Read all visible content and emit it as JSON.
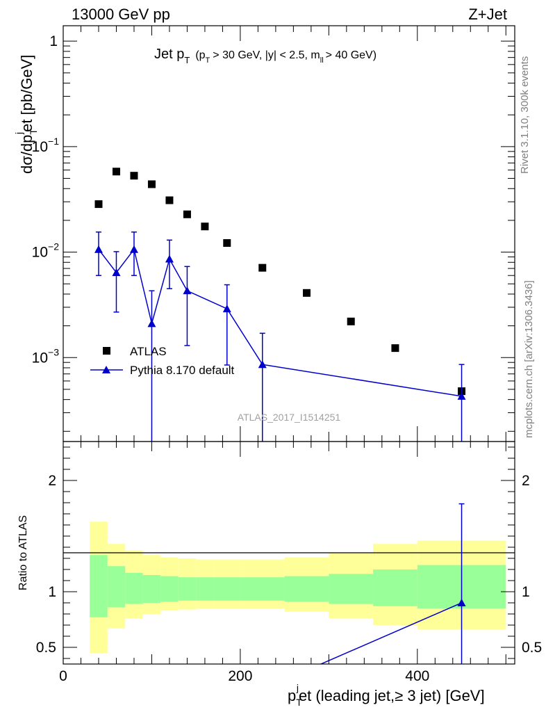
{
  "header": {
    "energy_label": "13000 GeV pp",
    "process_label": "Z+Jet",
    "side_label_top": "Rivet 3.1.10,  300k events",
    "side_label_bottom": "mcplots.cern.ch [arXiv:1306.3436]",
    "analysis_id": "ATLAS_2017_I1514251"
  },
  "chart_data": [
    {
      "type": "scatter",
      "title_main": "Jet p",
      "title_sub": "T",
      "title_cut_a": "(p",
      "title_cut_b": "T",
      "title_cut_c": "> 30 GeV, |y| < 2.5, m",
      "title_cut_d": "ll",
      "title_cut_e": "> 40 GeV)",
      "ylabel": "dσ/dp",
      "ylabel_sub_T": "T",
      "ylabel_sup_j": "j",
      "ylabel_tail": "et [pb/GeV]",
      "yscale": "log",
      "xlim": [
        0,
        510
      ],
      "ylim": [
        0.00016,
        1.4
      ],
      "yticks": [
        {
          "value": 1,
          "base": "1",
          "exp": ""
        },
        {
          "value": 0.1,
          "base": "10",
          "exp": "−1"
        },
        {
          "value": 0.01,
          "base": "10",
          "exp": "−2"
        },
        {
          "value": 0.001,
          "base": "10",
          "exp": "−3"
        }
      ],
      "legend": [
        {
          "label": "ATLAS",
          "marker": "square",
          "color": "#000000"
        },
        {
          "label": "Pythia 8.170 default",
          "marker": "triangle",
          "color": "#0000cc"
        }
      ],
      "series": [
        {
          "name": "ATLAS",
          "color": "#000000",
          "x": [
            40,
            60,
            80,
            100,
            120,
            140,
            160,
            185,
            225,
            275,
            325,
            375,
            450
          ],
          "y": [
            0.0285,
            0.058,
            0.053,
            0.044,
            0.031,
            0.0228,
            0.0175,
            0.0122,
            0.0071,
            0.0041,
            0.0022,
            0.00123,
            0.00048
          ]
        },
        {
          "name": "Pythia 8.170 default",
          "color": "#0000cc",
          "x": [
            40,
            60,
            80,
            100,
            120,
            140,
            185,
            225,
            450
          ],
          "y": [
            0.0106,
            0.0064,
            0.0106,
            0.0021,
            0.0086,
            0.0043,
            0.0029,
            0.00086,
            0.00043
          ],
          "y_low": [
            0.006,
            0.0027,
            0.006,
            0.0001,
            0.0045,
            0.0013,
            0.00085,
            0.0001,
            0.0001
          ],
          "y_high": [
            0.0155,
            0.0101,
            0.0155,
            0.0043,
            0.013,
            0.0073,
            0.0049,
            0.0017,
            0.00086
          ]
        }
      ]
    },
    {
      "type": "line",
      "ylabel": "Ratio to ATLAS",
      "xlabel_main": "p",
      "xlabel_sub": "T",
      "xlabel_sup": "j",
      "xlabel_tail": "et (leading jet,≥ 3 jet) [GeV]",
      "xlim": [
        0,
        510
      ],
      "ylim": [
        0.35,
        2.35
      ],
      "xticks": [
        {
          "value": 0,
          "label": "0"
        },
        {
          "value": 200,
          "label": "200"
        },
        {
          "value": 400,
          "label": "400"
        }
      ],
      "yticks": [
        {
          "value": 0.5,
          "label": "0.5"
        },
        {
          "value": 1,
          "label": "1"
        },
        {
          "value": 2,
          "label": "2"
        }
      ],
      "band_colors": {
        "outer": "#ffff99",
        "inner": "#99ff99"
      },
      "bins": [
        30,
        50,
        70,
        90,
        110,
        130,
        150,
        170,
        200,
        250,
        300,
        350,
        400,
        500
      ],
      "yellow_band": {
        "low": [
          0.45,
          0.67,
          0.76,
          0.8,
          0.83,
          0.84,
          0.85,
          0.85,
          0.85,
          0.82,
          0.76,
          0.7,
          0.66
        ],
        "high": [
          1.63,
          1.43,
          1.37,
          1.33,
          1.31,
          1.3,
          1.29,
          1.29,
          1.29,
          1.31,
          1.35,
          1.43,
          1.46
        ]
      },
      "green_band": {
        "low": [
          0.77,
          0.86,
          0.89,
          0.9,
          0.91,
          0.92,
          0.92,
          0.92,
          0.92,
          0.91,
          0.89,
          0.87,
          0.85
        ],
        "high": [
          1.33,
          1.23,
          1.17,
          1.15,
          1.14,
          1.13,
          1.13,
          1.13,
          1.13,
          1.14,
          1.16,
          1.2,
          1.24
        ]
      },
      "series": [
        {
          "name": "Pythia 8.170 default",
          "color": "#0000cc",
          "x": [
            225,
            450
          ],
          "y": [
            0.121,
            0.9
          ],
          "y_low": [
            0.01,
            0.2
          ],
          "y_high": [
            0.24,
            1.79
          ]
        }
      ]
    }
  ]
}
